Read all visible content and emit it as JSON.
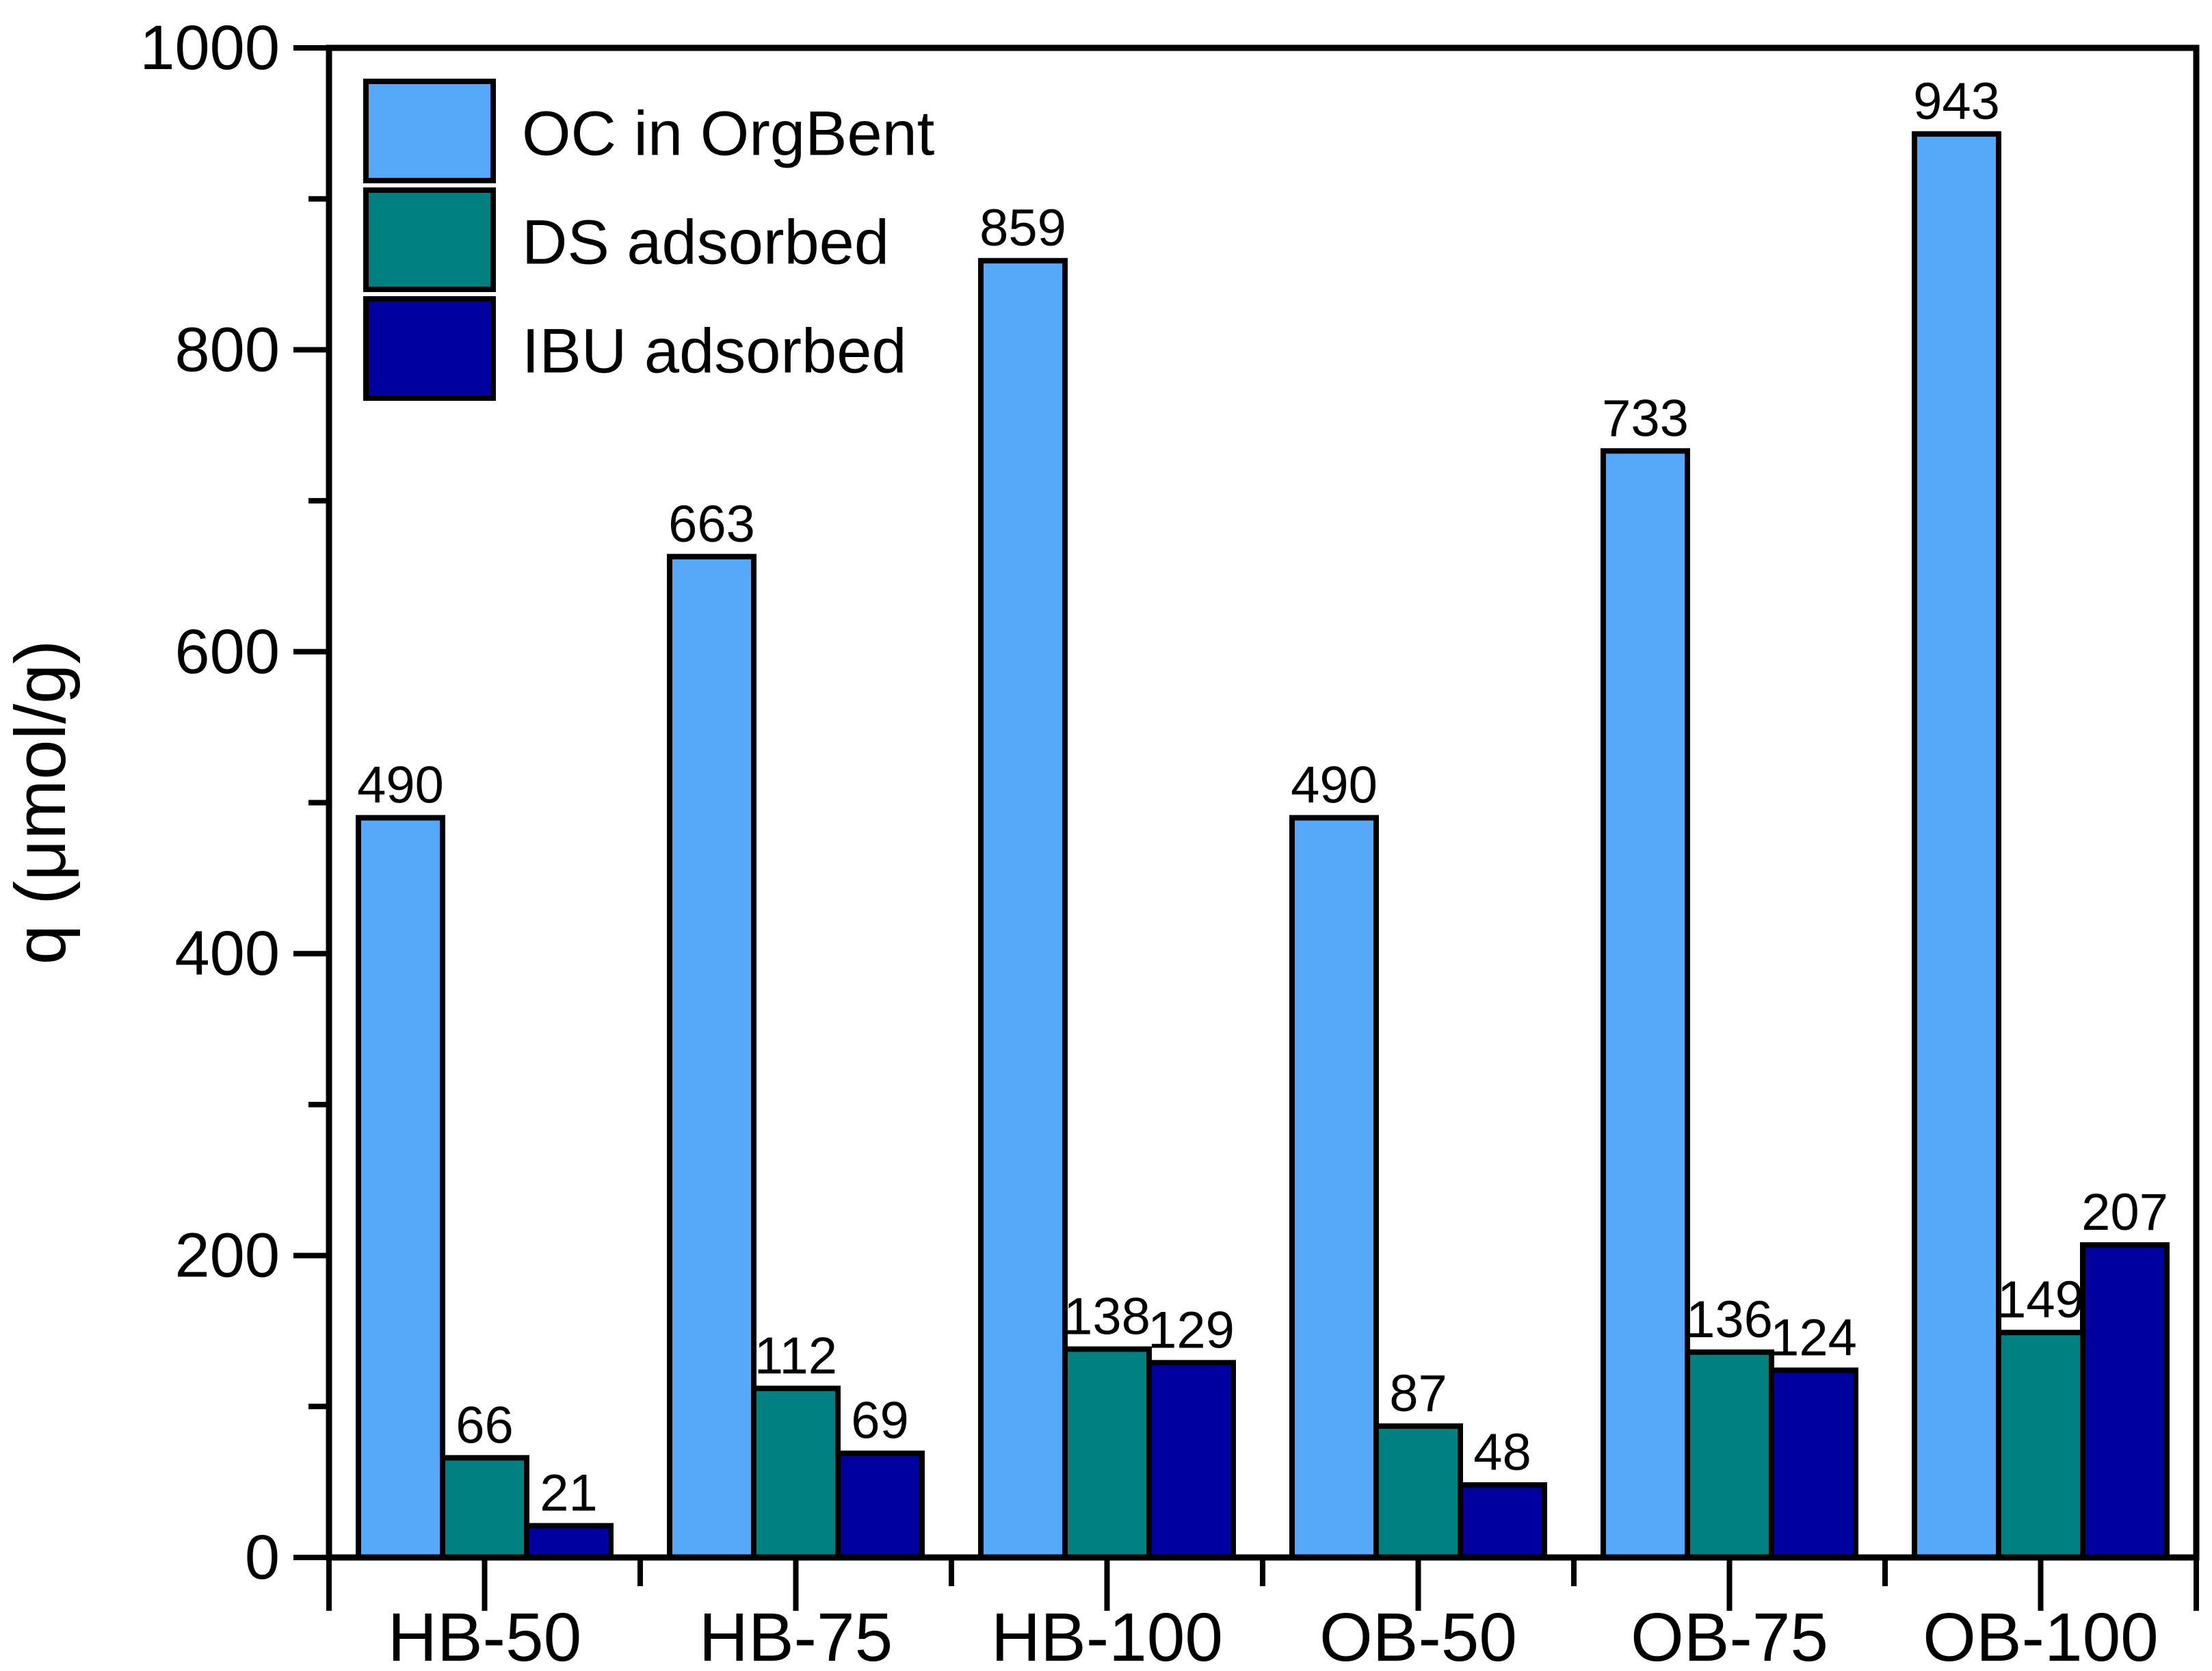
{
  "chart_data": {
    "type": "bar",
    "title": "",
    "xlabel": "",
    "ylabel": "q (μmol/g)",
    "categories": [
      "HB-50",
      "HB-75",
      "HB-100",
      "OB-50",
      "OB-75",
      "OB-100"
    ],
    "series": [
      {
        "name": "OC in OrgBent",
        "color": "#56A8F8",
        "values": [
          490,
          663,
          859,
          490,
          733,
          943
        ]
      },
      {
        "name": "DS adsorbed",
        "color": "#008080",
        "values": [
          66,
          112,
          138,
          87,
          136,
          149
        ]
      },
      {
        "name": "IBU adsorbed",
        "color": "#0000A0",
        "values": [
          21,
          69,
          129,
          48,
          124,
          207
        ]
      }
    ],
    "ylim": [
      0,
      1000
    ],
    "y_major_ticks": [
      0,
      200,
      400,
      600,
      800,
      1000
    ],
    "y_minor_ticks": [
      100,
      300,
      500,
      700,
      900
    ],
    "value_labels": true,
    "bar_edge_color": "#000000",
    "axis_color": "#000000",
    "background_color": "#ffffff",
    "grid": false,
    "legend_position": "top-left"
  }
}
